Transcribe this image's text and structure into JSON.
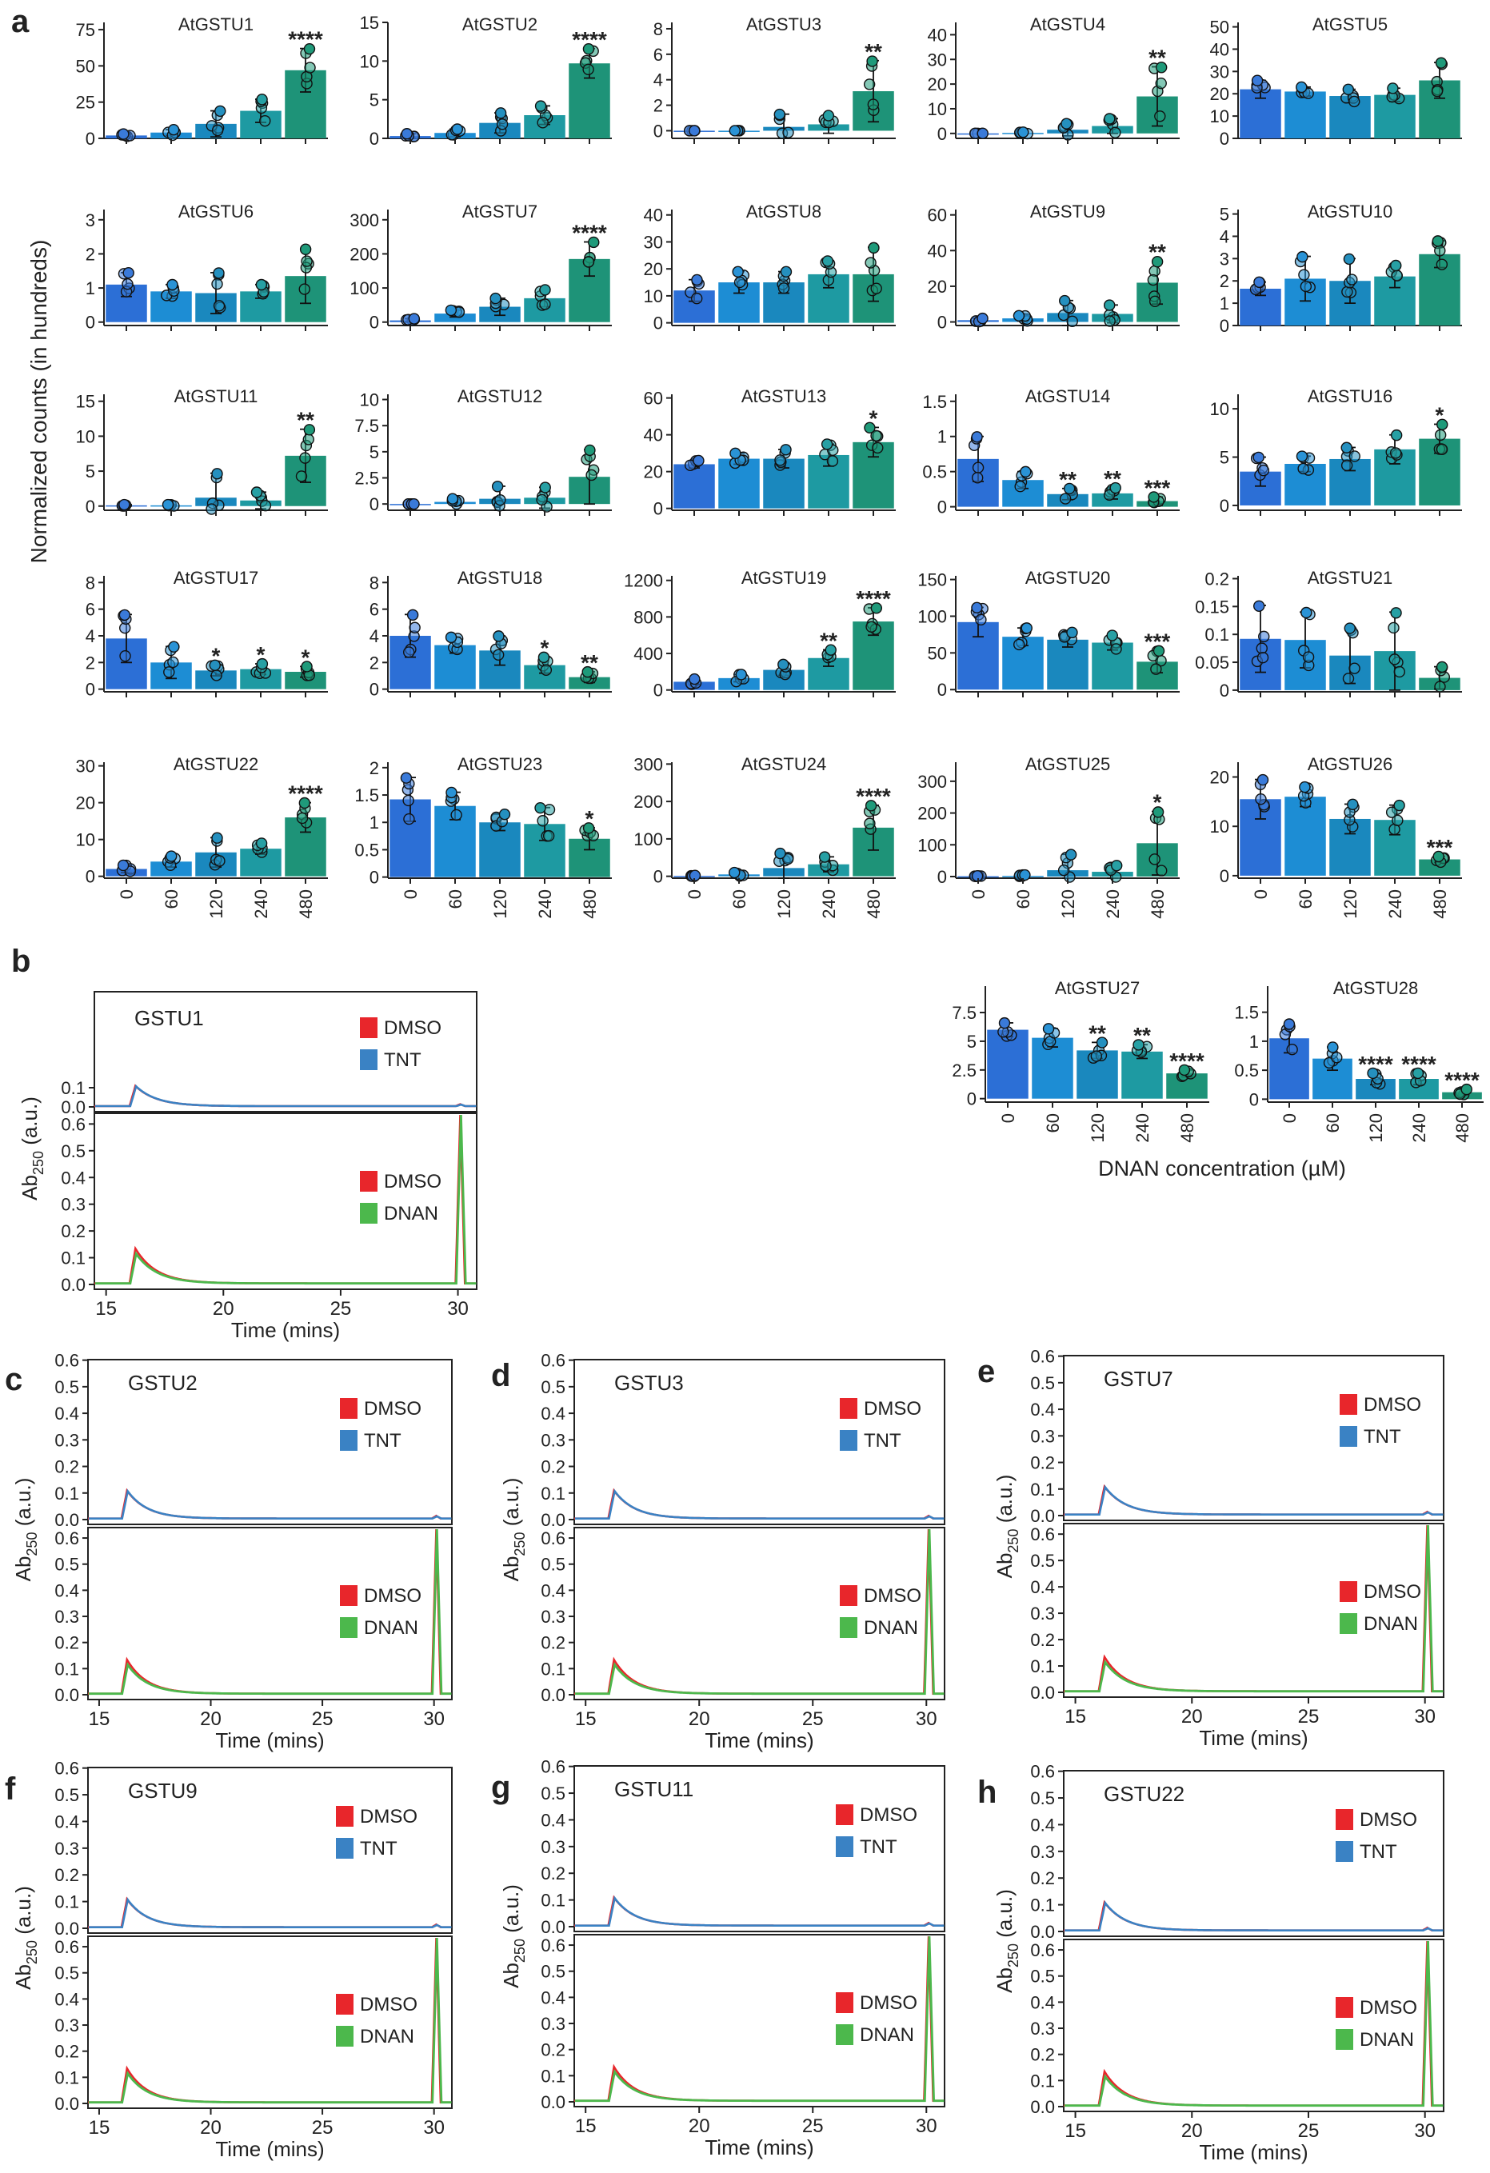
{
  "panel_letters": [
    "a",
    "b",
    "c",
    "d",
    "e",
    "f",
    "g",
    "h"
  ],
  "colors": {
    "bars": [
      "#2c6fd6",
      "#1d8dd4",
      "#1a88be",
      "#1e9aa2",
      "#1e9378"
    ],
    "dots": [
      "#3a7ad9",
      "#2a93d6",
      "#2590bf",
      "#27a0a4",
      "#1f9a7a"
    ],
    "dmso": "#e8262b",
    "tnt": "#3a82c4",
    "dnan": "#4cb84c",
    "axis": "#222222"
  },
  "bar_charts": {
    "ylabel": "Normalized counts (in hundreds)",
    "xlabel": "DNAN concentration (µM)"
  },
  "chart_data": [
    {
      "type": "bar",
      "title": "AtGSTU1",
      "categories": [
        "0",
        "60",
        "120",
        "240",
        "480"
      ],
      "values": [
        2,
        4,
        10,
        19,
        47
      ],
      "errors": [
        1,
        2,
        9,
        8,
        15
      ],
      "ylim": [
        0,
        80
      ],
      "yticks": [
        0,
        25,
        50,
        75
      ],
      "yticklabels": [
        "0",
        "25",
        "50",
        "75"
      ],
      "sig": [
        "",
        "",
        "",
        "",
        "****"
      ]
    },
    {
      "type": "bar",
      "title": "AtGSTU2",
      "categories": [
        "0",
        "60",
        "120",
        "240",
        "480"
      ],
      "values": [
        0.3,
        0.7,
        2.0,
        3.0,
        9.7
      ],
      "errors": [
        0.3,
        0.5,
        1.3,
        1.2,
        1.9
      ],
      "ylim": [
        0,
        15
      ],
      "yticks": [
        0,
        5,
        10,
        15
      ],
      "yticklabels": [
        "0",
        "5",
        "10",
        "15"
      ],
      "sig": [
        "",
        "",
        "",
        "",
        "****"
      ]
    },
    {
      "type": "bar",
      "title": "AtGSTU3",
      "categories": [
        "0",
        "60",
        "120",
        "240",
        "480"
      ],
      "values": [
        0,
        0,
        0.3,
        0.5,
        3.1
      ],
      "errors": [
        0,
        0,
        1.0,
        0.7,
        2.4
      ],
      "ylim": [
        -0.6,
        8.5
      ],
      "yticks": [
        0,
        2,
        4,
        6,
        8
      ],
      "yticklabels": [
        "0",
        "2",
        "4",
        "6",
        "8"
      ],
      "sig": [
        "",
        "",
        "",
        "",
        "**"
      ]
    },
    {
      "type": "bar",
      "title": "AtGSTU4",
      "categories": [
        "0",
        "60",
        "120",
        "240",
        "480"
      ],
      "values": [
        0,
        0.2,
        1.5,
        3,
        15
      ],
      "errors": [
        0,
        0.3,
        2.5,
        3,
        12
      ],
      "ylim": [
        -2,
        45
      ],
      "yticks": [
        0,
        10,
        20,
        30,
        40
      ],
      "yticklabels": [
        "0",
        "10",
        "20",
        "30",
        "40"
      ],
      "sig": [
        "",
        "",
        "",
        "",
        "**"
      ]
    },
    {
      "type": "bar",
      "title": "AtGSTU5",
      "categories": [
        "0",
        "60",
        "120",
        "240",
        "480"
      ],
      "values": [
        22,
        21,
        19,
        19.5,
        26
      ],
      "errors": [
        4,
        2,
        3,
        3,
        8
      ],
      "ylim": [
        0,
        52
      ],
      "yticks": [
        0,
        10,
        20,
        30,
        40,
        50
      ],
      "yticklabels": [
        "0",
        "10",
        "20",
        "30",
        "40",
        "50"
      ],
      "sig": [
        "",
        "",
        "",
        "",
        ""
      ]
    },
    {
      "type": "bar",
      "title": "AtGSTU6",
      "categories": [
        "0",
        "60",
        "120",
        "240",
        "480"
      ],
      "values": [
        1.1,
        0.9,
        0.85,
        0.9,
        1.35
      ],
      "errors": [
        0.35,
        0.2,
        0.6,
        0.2,
        0.8
      ],
      "ylim": [
        -0.1,
        3.3
      ],
      "yticks": [
        0,
        1,
        2,
        3
      ],
      "yticklabels": [
        "0",
        "1",
        "2",
        "3"
      ],
      "sig": [
        "",
        "",
        "",
        "",
        ""
      ]
    },
    {
      "type": "bar",
      "title": "AtGSTU7",
      "categories": [
        "0",
        "60",
        "120",
        "240",
        "480"
      ],
      "values": [
        5,
        25,
        45,
        70,
        185
      ],
      "errors": [
        5,
        10,
        25,
        25,
        50
      ],
      "ylim": [
        -10,
        330
      ],
      "yticks": [
        0,
        100,
        200,
        300
      ],
      "yticklabels": [
        "0",
        "100",
        "200",
        "300"
      ],
      "sig": [
        "",
        "",
        "",
        "",
        "****"
      ]
    },
    {
      "type": "bar",
      "title": "AtGSTU8",
      "categories": [
        "0",
        "60",
        "120",
        "240",
        "480"
      ],
      "values": [
        12,
        15,
        15,
        18,
        18
      ],
      "errors": [
        4,
        4,
        4,
        5,
        10
      ],
      "ylim": [
        -1,
        42
      ],
      "yticks": [
        0,
        10,
        20,
        30,
        40
      ],
      "yticklabels": [
        "0",
        "10",
        "20",
        "30",
        "40"
      ],
      "sig": [
        "",
        "",
        "",
        "",
        ""
      ]
    },
    {
      "type": "bar",
      "title": "AtGSTU9",
      "categories": [
        "0",
        "60",
        "120",
        "240",
        "480"
      ],
      "values": [
        1,
        2,
        5,
        4.5,
        22
      ],
      "errors": [
        1,
        1.5,
        7,
        5,
        12
      ],
      "ylim": [
        -2,
        63
      ],
      "yticks": [
        0,
        20,
        40,
        60
      ],
      "yticklabels": [
        "0",
        "20",
        "40",
        "60"
      ],
      "sig": [
        "",
        "",
        "",
        "",
        "**"
      ]
    },
    {
      "type": "bar",
      "title": "AtGSTU10",
      "categories": [
        "0",
        "60",
        "120",
        "240",
        "480"
      ],
      "values": [
        1.65,
        2.1,
        2.0,
        2.2,
        3.2
      ],
      "errors": [
        0.3,
        1.0,
        1.0,
        0.5,
        0.6
      ],
      "ylim": [
        0,
        5.2
      ],
      "yticks": [
        0,
        1,
        2,
        3,
        4,
        5
      ],
      "yticklabels": [
        "0",
        "1",
        "2",
        "3",
        "4",
        "5"
      ],
      "sig": [
        "",
        "",
        "",
        "",
        ""
      ]
    },
    {
      "type": "bar",
      "title": "AtGSTU11",
      "categories": [
        "0",
        "60",
        "120",
        "240",
        "480"
      ],
      "values": [
        0.1,
        0.1,
        1.2,
        0.8,
        7.2
      ],
      "errors": [
        0.1,
        0.1,
        3.5,
        1.2,
        3.8
      ],
      "ylim": [
        -0.6,
        16
      ],
      "yticks": [
        0,
        5,
        10,
        15
      ],
      "yticklabels": [
        "0",
        "5",
        "10",
        "15"
      ],
      "sig": [
        "",
        "",
        "",
        "",
        "**"
      ]
    },
    {
      "type": "bar",
      "title": "AtGSTU12",
      "categories": [
        "0",
        "60",
        "120",
        "240",
        "480"
      ],
      "values": [
        0,
        0.2,
        0.5,
        0.6,
        2.6
      ],
      "errors": [
        0,
        0.3,
        1.2,
        1.0,
        2.6
      ],
      "ylim": [
        -0.6,
        10.5
      ],
      "yticks": [
        0,
        2.5,
        5,
        7.5,
        10
      ],
      "yticklabels": [
        "0",
        "2.5",
        "5",
        "7.5",
        "10"
      ],
      "sig": [
        "",
        "",
        "",
        "",
        ""
      ]
    },
    {
      "type": "bar",
      "title": "AtGSTU13",
      "categories": [
        "0",
        "60",
        "120",
        "240",
        "480"
      ],
      "values": [
        24,
        27,
        27,
        29,
        36
      ],
      "errors": [
        2,
        3,
        5,
        6,
        8
      ],
      "ylim": [
        -1,
        62
      ],
      "yticks": [
        0,
        20,
        40,
        60
      ],
      "yticklabels": [
        "0",
        "20",
        "40",
        "60"
      ],
      "sig": [
        "",
        "",
        "",
        "",
        "*"
      ]
    },
    {
      "type": "bar",
      "title": "AtGSTU14",
      "categories": [
        "0",
        "60",
        "120",
        "240",
        "480"
      ],
      "values": [
        0.68,
        0.38,
        0.18,
        0.19,
        0.08
      ],
      "errors": [
        0.32,
        0.12,
        0.08,
        0.08,
        0.06
      ],
      "ylim": [
        -0.05,
        1.6
      ],
      "yticks": [
        0,
        0.5,
        1,
        1.5
      ],
      "yticklabels": [
        "0",
        "0.5",
        "1",
        "1.5"
      ],
      "sig": [
        "",
        "",
        "**",
        "**",
        "***"
      ]
    },
    {
      "type": "bar",
      "title": "AtGSTU16",
      "categories": [
        "0",
        "60",
        "120",
        "240",
        "480"
      ],
      "values": [
        3.5,
        4.3,
        4.8,
        5.8,
        6.9
      ],
      "errors": [
        1.5,
        0.8,
        1.2,
        1.5,
        1.5
      ],
      "ylim": [
        -0.5,
        11.5
      ],
      "yticks": [
        0,
        5,
        10
      ],
      "yticklabels": [
        "0",
        "5",
        "10"
      ],
      "sig": [
        "",
        "",
        "",
        "",
        "*"
      ]
    },
    {
      "type": "bar",
      "title": "AtGSTU17",
      "categories": [
        "0",
        "60",
        "120",
        "240",
        "480"
      ],
      "values": [
        3.8,
        2.0,
        1.4,
        1.5,
        1.3
      ],
      "errors": [
        1.8,
        1.2,
        0.4,
        0.4,
        0.4
      ],
      "ylim": [
        -0.2,
        8.5
      ],
      "yticks": [
        0,
        2,
        4,
        6,
        8
      ],
      "yticklabels": [
        "0",
        "2",
        "4",
        "6",
        "8"
      ],
      "sig": [
        "",
        "",
        "*",
        "*",
        "*"
      ]
    },
    {
      "type": "bar",
      "title": "AtGSTU18",
      "categories": [
        "0",
        "60",
        "120",
        "240",
        "480"
      ],
      "values": [
        4.0,
        3.3,
        2.9,
        1.8,
        0.9
      ],
      "errors": [
        1.6,
        0.6,
        1.1,
        0.6,
        0.4
      ],
      "ylim": [
        -0.2,
        8.5
      ],
      "yticks": [
        0,
        2,
        4,
        6,
        8
      ],
      "yticklabels": [
        "0",
        "2",
        "4",
        "6",
        "8"
      ],
      "sig": [
        "",
        "",
        "",
        "*",
        "**"
      ]
    },
    {
      "type": "bar",
      "title": "AtGSTU19",
      "categories": [
        "0",
        "60",
        "120",
        "240",
        "480"
      ],
      "values": [
        90,
        130,
        220,
        350,
        750
      ],
      "errors": [
        30,
        40,
        60,
        90,
        150
      ],
      "ylim": [
        -20,
        1250
      ],
      "yticks": [
        0,
        400,
        800,
        1200
      ],
      "yticklabels": [
        "0",
        "400",
        "800",
        "1200"
      ],
      "sig": [
        "",
        "",
        "",
        "**",
        "****"
      ]
    },
    {
      "type": "bar",
      "title": "AtGSTU20",
      "categories": [
        "0",
        "60",
        "120",
        "240",
        "480"
      ],
      "values": [
        92,
        72,
        68,
        64,
        38
      ],
      "errors": [
        20,
        12,
        10,
        10,
        15
      ],
      "ylim": [
        -3,
        155
      ],
      "yticks": [
        0,
        50,
        100,
        150
      ],
      "yticklabels": [
        "0",
        "50",
        "100",
        "150"
      ],
      "sig": [
        "",
        "",
        "",
        "",
        "***"
      ]
    },
    {
      "type": "bar",
      "title": "AtGSTU21",
      "categories": [
        "0",
        "60",
        "120",
        "240",
        "480"
      ],
      "values": [
        0.092,
        0.09,
        0.062,
        0.07,
        0.022
      ],
      "errors": [
        0.06,
        0.05,
        0.05,
        0.07,
        0.02
      ],
      "ylim": [
        -0.003,
        0.205
      ],
      "yticks": [
        0,
        0.05,
        0.1,
        0.15,
        0.2
      ],
      "yticklabels": [
        "0",
        "0.05",
        "0.1",
        "0.15",
        "0.2"
      ],
      "sig": [
        "",
        "",
        "",
        "",
        ""
      ]
    },
    {
      "type": "bar",
      "title": "AtGSTU22",
      "categories": [
        "0",
        "60",
        "120",
        "240",
        "480"
      ],
      "values": [
        2,
        4,
        6.5,
        7.5,
        16
      ],
      "errors": [
        1,
        1.5,
        4,
        1.5,
        4
      ],
      "ylim": [
        -0.5,
        31
      ],
      "yticks": [
        0,
        10,
        20,
        30
      ],
      "yticklabels": [
        "0",
        "10",
        "20",
        "30"
      ],
      "sig": [
        "",
        "",
        "",
        "",
        "****"
      ]
    },
    {
      "type": "bar",
      "title": "AtGSTU23",
      "categories": [
        "0",
        "60",
        "120",
        "240",
        "480"
      ],
      "values": [
        1.42,
        1.3,
        1.0,
        0.97,
        0.7
      ],
      "errors": [
        0.4,
        0.25,
        0.15,
        0.3,
        0.2
      ],
      "ylim": [
        -0.02,
        2.1
      ],
      "yticks": [
        0,
        0.5,
        1,
        1.5,
        2
      ],
      "yticklabels": [
        "0",
        "0.5",
        "1",
        "1.5",
        "2"
      ],
      "sig": [
        "",
        "",
        "",
        "",
        "*"
      ]
    },
    {
      "type": "bar",
      "title": "AtGSTU24",
      "categories": [
        "0",
        "60",
        "120",
        "240",
        "480"
      ],
      "values": [
        1,
        5,
        22,
        32,
        130
      ],
      "errors": [
        1,
        5,
        40,
        20,
        60
      ],
      "ylim": [
        -5,
        305
      ],
      "yticks": [
        0,
        100,
        200,
        300
      ],
      "yticklabels": [
        "0",
        "100",
        "200",
        "300"
      ],
      "sig": [
        "",
        "",
        "",
        "",
        "****"
      ]
    },
    {
      "type": "bar",
      "title": "AtGSTU25",
      "categories": [
        "0",
        "60",
        "120",
        "240",
        "480"
      ],
      "values": [
        1,
        2,
        20,
        15,
        105
      ],
      "errors": [
        1,
        3,
        50,
        20,
        100
      ],
      "ylim": [
        -5,
        360
      ],
      "yticks": [
        0,
        100,
        200,
        300
      ],
      "yticklabels": [
        "0",
        "100",
        "200",
        "300"
      ],
      "sig": [
        "",
        "",
        "",
        "",
        "*"
      ]
    },
    {
      "type": "bar",
      "title": "AtGSTU26",
      "categories": [
        "0",
        "60",
        "120",
        "240",
        "480"
      ],
      "values": [
        15.5,
        16,
        11.5,
        11.3,
        3.3
      ],
      "errors": [
        4,
        2,
        3,
        3,
        0.6
      ],
      "ylim": [
        -0.5,
        23
      ],
      "yticks": [
        0,
        10,
        20
      ],
      "yticklabels": [
        "0",
        "10",
        "20"
      ],
      "sig": [
        "",
        "",
        "",
        "",
        "***"
      ]
    },
    {
      "type": "bar",
      "title": "AtGSTU27",
      "categories": [
        "0",
        "60",
        "120",
        "240",
        "480"
      ],
      "values": [
        6.0,
        5.3,
        4.2,
        4.1,
        2.2
      ],
      "errors": [
        0.6,
        0.8,
        0.7,
        0.6,
        0.3
      ],
      "ylim": [
        -0.3,
        9.8
      ],
      "yticks": [
        0,
        2.5,
        5,
        7.5
      ],
      "yticklabels": [
        "0",
        "2.5",
        "5",
        "7.5"
      ],
      "sig": [
        "",
        "",
        "**",
        "**",
        "****"
      ]
    },
    {
      "type": "bar",
      "title": "AtGSTU28",
      "categories": [
        "0",
        "60",
        "120",
        "240",
        "480"
      ],
      "values": [
        1.05,
        0.7,
        0.35,
        0.35,
        0.12
      ],
      "errors": [
        0.25,
        0.2,
        0.1,
        0.1,
        0.05
      ],
      "ylim": [
        -0.05,
        1.95
      ],
      "yticks": [
        0,
        0.5,
        1,
        1.5
      ],
      "yticklabels": [
        "0",
        "0.5",
        "1",
        "1.5"
      ],
      "sig": [
        "",
        "",
        "****",
        "****",
        "****"
      ]
    }
  ],
  "chromatograms": {
    "ylabel_main": "Ab",
    "ylabel_sub": "250",
    "ylabel_unit": "(a.u.)",
    "xlabel": "Time (mins)",
    "xlim": [
      14.5,
      30.8
    ],
    "xticks": [
      15,
      20,
      25,
      30
    ],
    "xticklabels": [
      "15",
      "20",
      "25",
      "30"
    ],
    "top_ylim": [
      0,
      0.6
    ],
    "top_yticks": [
      0,
      0.1
    ],
    "top_yticklabels": [
      "0.0",
      "0.1"
    ],
    "bottom_ylim": [
      0,
      0.65
    ],
    "bottom_yticks": [
      0,
      0.1,
      0.2,
      0.3,
      0.4,
      0.5,
      0.6
    ],
    "bottom_yticklabels": [
      "0.0",
      "0.1",
      "0.2",
      "0.3",
      "0.4",
      "0.5",
      "0.6"
    ],
    "full_yticklabels": [
      "0.0",
      "0.1",
      "0.2",
      "0.3",
      "0.4",
      "0.5",
      "0.6"
    ],
    "legend_top": [
      "DMSO",
      "TNT"
    ],
    "legend_bottom": [
      "DMSO",
      "DNAN"
    ],
    "peak_time": 16.0,
    "peak_height_top": 0.105,
    "peak_height_bottom": 0.13,
    "late_peak_time": 30.1,
    "panels": [
      {
        "letter": "b",
        "title": "GSTU1"
      },
      {
        "letter": "c",
        "title": "GSTU2"
      },
      {
        "letter": "d",
        "title": "GSTU3"
      },
      {
        "letter": "e",
        "title": "GSTU7"
      },
      {
        "letter": "f",
        "title": "GSTU9"
      },
      {
        "letter": "g",
        "title": "GSTU11"
      },
      {
        "letter": "h",
        "title": "GSTU22"
      }
    ]
  }
}
